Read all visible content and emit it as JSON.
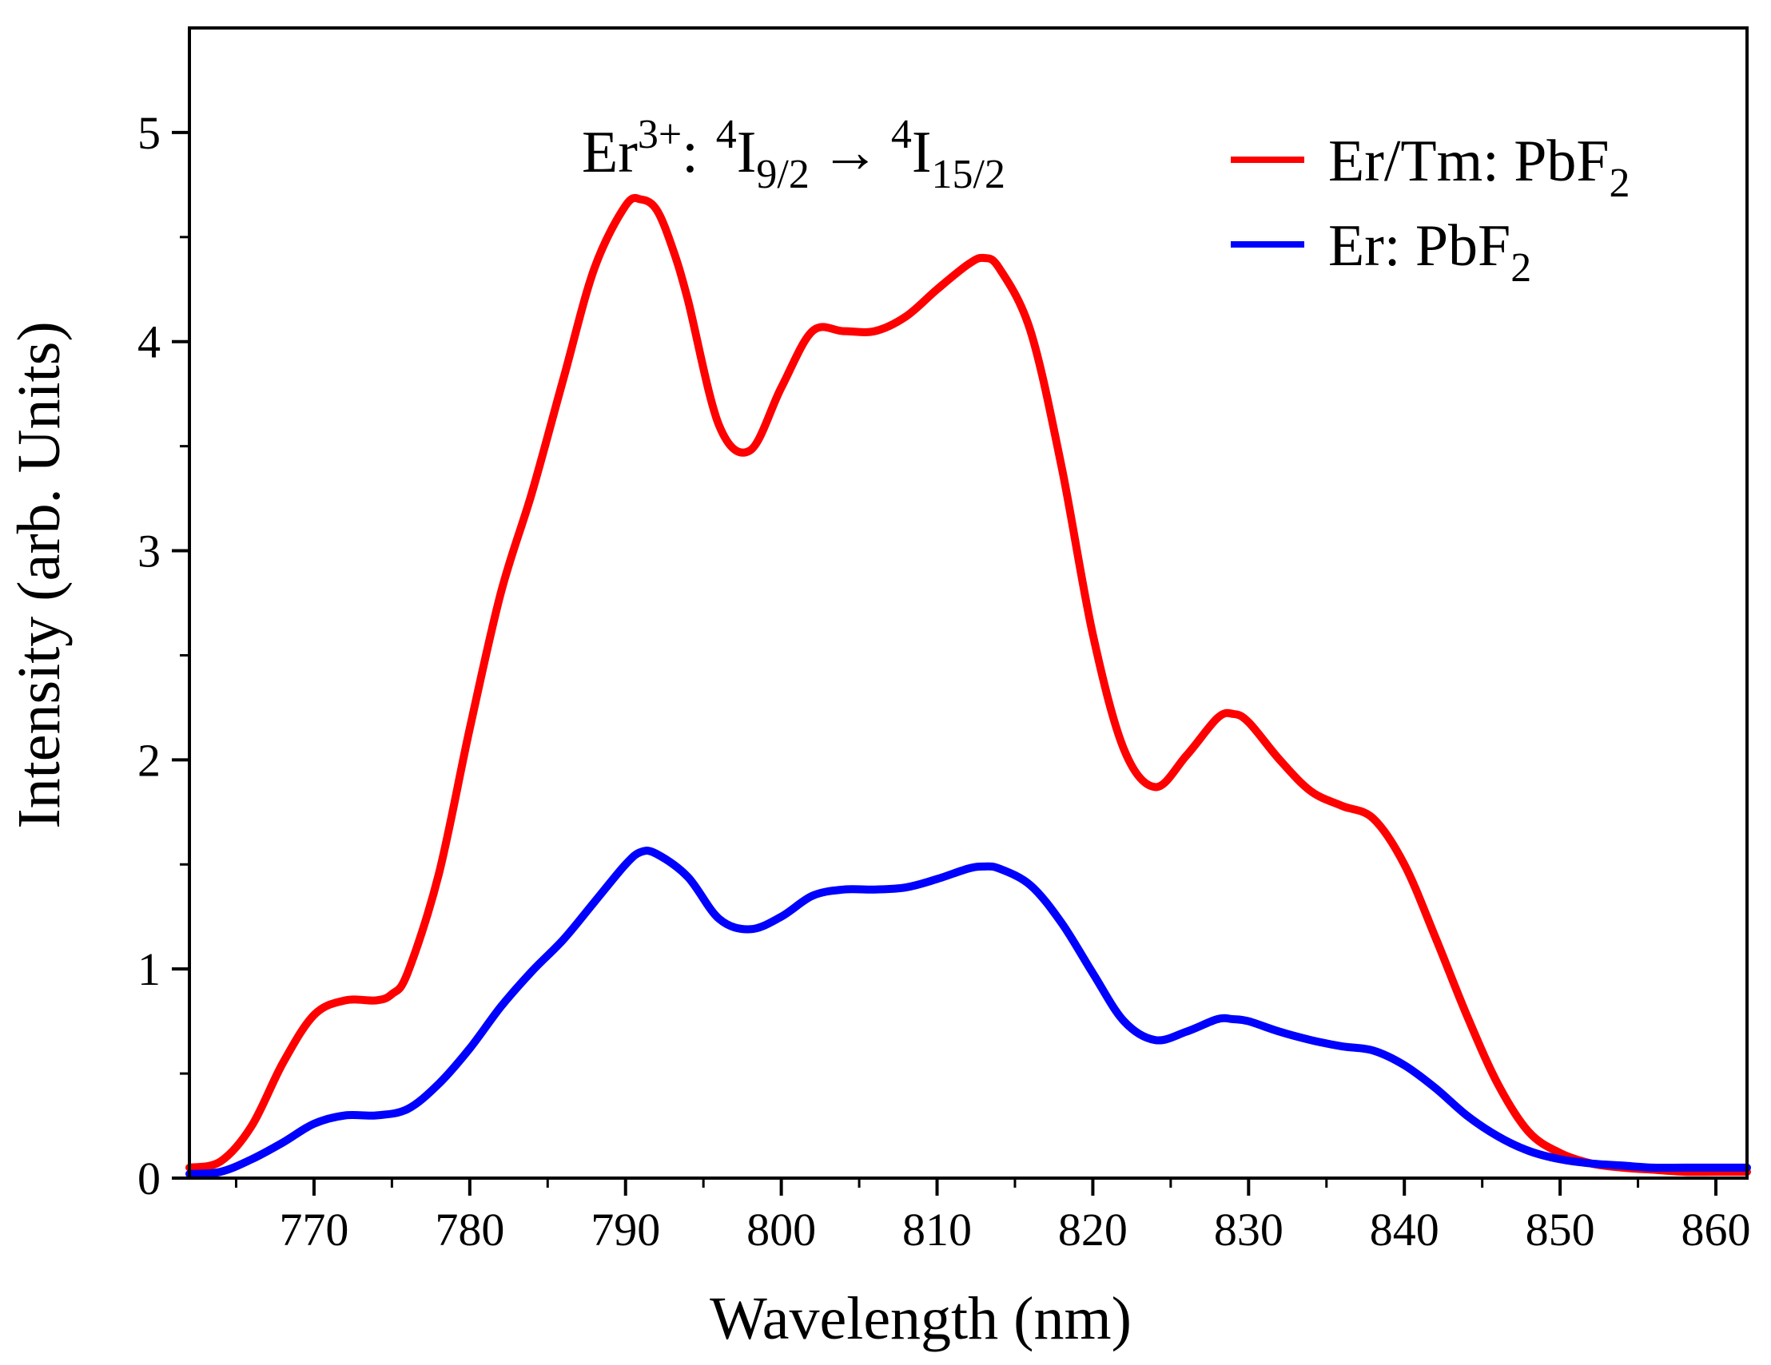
{
  "chart_data": {
    "type": "line",
    "title": "",
    "xlabel": "Wavelength (nm)",
    "ylabel": "Intensity (arb. Units)",
    "xlim": [
      762,
      862
    ],
    "ylim": [
      0,
      5.5
    ],
    "x_ticks": [
      770,
      780,
      790,
      800,
      810,
      820,
      830,
      840,
      850,
      860
    ],
    "y_ticks": [
      0,
      1,
      2,
      3,
      4,
      5
    ],
    "annotation": {
      "ion": "Er",
      "charge": "3+",
      "colon": ":",
      "sup1": "4",
      "level1": "I",
      "sub1": "9/2",
      "arrow": "→",
      "sup2": "4",
      "level2": "I",
      "sub2": "15/2"
    },
    "legend_position": "top-right",
    "series": [
      {
        "name": "Er/Tm: PbF2",
        "legend_main": "Er/Tm: PbF",
        "legend_sub": "2",
        "color": "#ff0000",
        "x": [
          762,
          764,
          766,
          768,
          770,
          772,
          774,
          775,
          776,
          778,
          780,
          782,
          784,
          786,
          788,
          790,
          791,
          792,
          793,
          794,
          796,
          798,
          800,
          802,
          804,
          806,
          808,
          810,
          812,
          813,
          814,
          816,
          818,
          820,
          822,
          824,
          826,
          828,
          829,
          830,
          832,
          834,
          836,
          838,
          840,
          842,
          844,
          846,
          848,
          850,
          852,
          854,
          856,
          858,
          860,
          862
        ],
        "y": [
          0.05,
          0.08,
          0.25,
          0.55,
          0.78,
          0.85,
          0.85,
          0.88,
          0.98,
          1.45,
          2.15,
          2.8,
          3.28,
          3.82,
          4.35,
          4.65,
          4.68,
          4.63,
          4.45,
          4.2,
          3.6,
          3.48,
          3.78,
          4.05,
          4.05,
          4.05,
          4.12,
          4.25,
          4.37,
          4.4,
          4.35,
          4.05,
          3.4,
          2.6,
          2.05,
          1.87,
          2.02,
          2.2,
          2.22,
          2.18,
          2.0,
          1.85,
          1.78,
          1.72,
          1.5,
          1.15,
          0.78,
          0.45,
          0.22,
          0.12,
          0.07,
          0.05,
          0.04,
          0.03,
          0.03,
          0.03
        ]
      },
      {
        "name": "Er: PbF2",
        "legend_main": "Er: PbF",
        "legend_sub": "2",
        "color": "#0000ff",
        "x": [
          762,
          764,
          766,
          768,
          770,
          772,
          774,
          776,
          778,
          780,
          782,
          784,
          786,
          788,
          790,
          791,
          792,
          794,
          796,
          798,
          800,
          802,
          804,
          806,
          808,
          810,
          812,
          813,
          814,
          816,
          818,
          820,
          822,
          824,
          826,
          828,
          829,
          830,
          832,
          834,
          836,
          838,
          840,
          842,
          844,
          846,
          848,
          850,
          852,
          854,
          856,
          858,
          860,
          862
        ],
        "y": [
          0.02,
          0.03,
          0.09,
          0.17,
          0.26,
          0.3,
          0.3,
          0.33,
          0.45,
          0.62,
          0.82,
          0.99,
          1.14,
          1.32,
          1.5,
          1.56,
          1.55,
          1.44,
          1.24,
          1.19,
          1.25,
          1.35,
          1.38,
          1.38,
          1.39,
          1.43,
          1.48,
          1.49,
          1.48,
          1.4,
          1.22,
          0.98,
          0.75,
          0.66,
          0.7,
          0.76,
          0.76,
          0.75,
          0.7,
          0.66,
          0.63,
          0.61,
          0.54,
          0.43,
          0.3,
          0.2,
          0.13,
          0.09,
          0.07,
          0.06,
          0.05,
          0.05,
          0.05,
          0.05
        ]
      }
    ]
  }
}
